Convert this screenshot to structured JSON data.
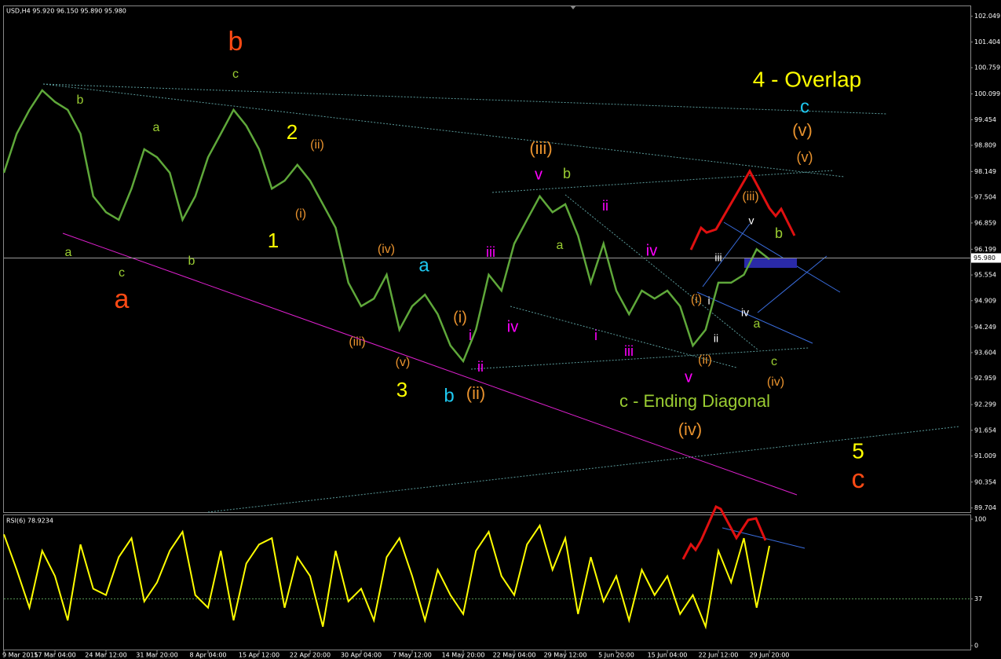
{
  "chart_data": [
    {
      "type": "line",
      "title": "USD,H4 95.920 96.150 95.890 95.980",
      "color": "#5fa83a",
      "categories": [
        "9 Mar 2015",
        null,
        null,
        null,
        "17 Mar 04:00",
        null,
        null,
        null,
        "24 Mar 12:00",
        null,
        null,
        null,
        "31 Mar 20:00",
        null,
        null,
        null,
        "8 Apr 04:00",
        null,
        null,
        null,
        "15 Apr 12:00",
        null,
        null,
        null,
        "22 Apr 20:00",
        null,
        null,
        null,
        "30 Apr 04:00",
        null,
        null,
        null,
        "7 May 12:00",
        null,
        null,
        null,
        "14 May 20:00",
        null,
        null,
        null,
        "22 May 04:00",
        null,
        null,
        null,
        "29 May 12:00",
        null,
        null,
        null,
        "5 Jun 20:00",
        null,
        null,
        null,
        "15 Jun 04:00",
        null,
        null,
        null,
        "22 Jun 12:00",
        null,
        null,
        null,
        "29 Jun 20:00"
      ],
      "values": [
        98.12,
        99.1,
        99.7,
        100.19,
        99.9,
        99.7,
        99.1,
        97.53,
        97.13,
        96.94,
        97.72,
        98.71,
        98.51,
        98.12,
        96.94,
        97.53,
        98.51,
        99.1,
        99.7,
        99.3,
        98.71,
        97.72,
        97.92,
        98.32,
        97.92,
        97.33,
        96.74,
        95.36,
        94.77,
        94.96,
        95.56,
        94.18,
        94.77,
        95.06,
        94.57,
        93.78,
        93.39,
        94.18,
        95.56,
        95.16,
        96.34,
        96.94,
        97.53,
        97.13,
        97.33,
        96.54,
        95.36,
        96.34,
        95.16,
        94.57,
        95.16,
        94.96,
        95.16,
        94.77,
        93.78,
        94.18,
        95.36,
        95.36,
        95.56,
        96.2,
        95.95
      ],
      "ylim": [
        89.6,
        102.3
      ],
      "yticks": [
        102.049,
        101.404,
        100.759,
        100.099,
        99.454,
        98.809,
        98.149,
        97.504,
        96.859,
        96.199,
        95.554,
        94.909,
        94.249,
        93.604,
        92.959,
        92.299,
        91.654,
        91.009,
        90.354,
        89.704
      ],
      "last_price": {
        "value": 95.98,
        "label": "95.980"
      },
      "annotations": [
        {
          "text": "b",
          "color": "#ff4a14"
        },
        {
          "text": "c",
          "color": "#9acd32"
        },
        {
          "text": "b",
          "color": "#9acd32"
        },
        {
          "text": "a",
          "color": "#9acd32"
        },
        {
          "text": "2",
          "color": "#ffff00"
        },
        {
          "text": "(ii)",
          "color": "#e8922e"
        },
        {
          "text": "(i)",
          "color": "#e8922e"
        },
        {
          "text": "1",
          "color": "#ffff00"
        },
        {
          "text": "a",
          "color": "#9acd32"
        },
        {
          "text": "c",
          "color": "#9acd32"
        },
        {
          "text": "a",
          "color": "#ff4a14"
        },
        {
          "text": "b",
          "color": "#9acd32"
        },
        {
          "text": "(iv)",
          "color": "#e8922e"
        },
        {
          "text": "a",
          "color": "#1ec8f0"
        },
        {
          "text": "(iii)",
          "color": "#e8922e"
        },
        {
          "text": "(v)",
          "color": "#e8922e"
        },
        {
          "text": "3",
          "color": "#ffff00"
        },
        {
          "text": "(i)",
          "color": "#e8922e"
        },
        {
          "text": "i",
          "color": "#ff00ff"
        },
        {
          "text": "ii",
          "color": "#ff00ff"
        },
        {
          "text": "b",
          "color": "#1ec8f0"
        },
        {
          "text": "(ii)",
          "color": "#e8922e"
        },
        {
          "text": "iii",
          "color": "#ff00ff"
        },
        {
          "text": "iv",
          "color": "#ff00ff"
        },
        {
          "text": "(iii)",
          "color": "#e8922e"
        },
        {
          "text": "v",
          "color": "#ff00ff"
        },
        {
          "text": "b",
          "color": "#9acd32"
        },
        {
          "text": "a",
          "color": "#9acd32"
        },
        {
          "text": "ii",
          "color": "#ff00ff"
        },
        {
          "text": "iv",
          "color": "#ff00ff"
        },
        {
          "text": "i",
          "color": "#ff00ff"
        },
        {
          "text": "iii",
          "color": "#ff00ff"
        },
        {
          "text": "v",
          "color": "#ff00ff"
        },
        {
          "text": "c - Ending Diagonal",
          "color": "#9acd32"
        },
        {
          "text": "(iv)",
          "color": "#e8922e"
        },
        {
          "text": "(i)",
          "color": "#e8922e"
        },
        {
          "text": "i",
          "color": "#ffffff"
        },
        {
          "text": "ii",
          "color": "#ffffff"
        },
        {
          "text": "(ii)",
          "color": "#e8922e"
        },
        {
          "text": "iii",
          "color": "#ffffff"
        },
        {
          "text": "v",
          "color": "#ffffff"
        },
        {
          "text": "iv",
          "color": "#ffffff"
        },
        {
          "text": "a",
          "color": "#9acd32"
        },
        {
          "text": "b",
          "color": "#9acd32"
        },
        {
          "text": "(iii)",
          "color": "#e8922e"
        },
        {
          "text": "c",
          "color": "#9acd32"
        },
        {
          "text": "(iv)",
          "color": "#e8922e"
        },
        {
          "text": "4 - Overlap",
          "color": "#ffff00"
        },
        {
          "text": "c",
          "color": "#1ec8f0"
        },
        {
          "text": "(v)",
          "color": "#e8922e"
        },
        {
          "text": "(v)",
          "color": "#e8922e"
        },
        {
          "text": "5",
          "color": "#ffff00"
        },
        {
          "text": "c",
          "color": "#ff4a14"
        }
      ]
    },
    {
      "type": "line",
      "title": "RSI(6) 78.9234",
      "color": "#ffff00",
      "values": [
        88,
        60,
        30,
        75,
        55,
        20,
        80,
        45,
        40,
        70,
        85,
        35,
        50,
        75,
        90,
        40,
        30,
        75,
        20,
        65,
        80,
        85,
        30,
        70,
        55,
        15,
        75,
        35,
        45,
        20,
        70,
        85,
        55,
        20,
        60,
        40,
        25,
        75,
        90,
        55,
        40,
        80,
        95,
        60,
        85,
        25,
        70,
        35,
        55,
        20,
        60,
        40,
        55,
        25,
        40,
        15,
        75,
        50,
        85,
        30,
        78.9
      ],
      "ylim": [
        0,
        100
      ],
      "yticks": [
        100,
        37,
        0
      ]
    }
  ]
}
